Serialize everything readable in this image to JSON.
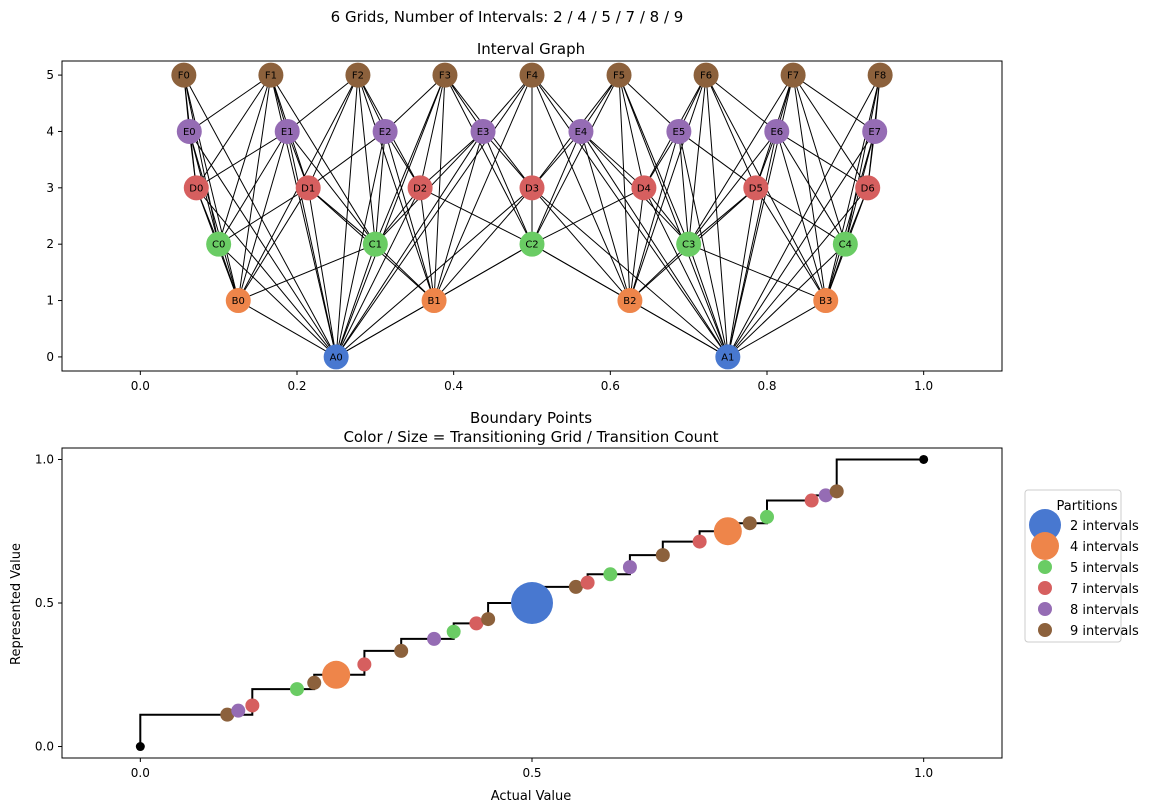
{
  "figure_title": "6 Grids, Number of Intervals: 2 / 4 / 5 / 7 / 8 / 9",
  "colors": {
    "2": "#4878d0",
    "4": "#ee854a",
    "5": "#6acc64",
    "7": "#d65f5f",
    "8": "#956cb4",
    "9": "#8c613c",
    "edge": "#000000",
    "point": "#000000"
  },
  "chart_data": [
    {
      "type": "network",
      "title": "Interval Graph",
      "xlim": [
        -0.1,
        1.1
      ],
      "ylim": [
        -0.25,
        5.25
      ],
      "xticks": [
        0.0,
        0.2,
        0.4,
        0.6,
        0.8,
        1.0
      ],
      "xtick_labels": [
        "0.0",
        "0.2",
        "0.4",
        "0.6",
        "0.8",
        "1.0"
      ],
      "yticks": [
        0,
        1,
        2,
        3,
        4,
        5
      ],
      "ytick_labels": [
        "0",
        "1",
        "2",
        "3",
        "4",
        "5"
      ],
      "levels": [
        {
          "prefix": "A",
          "y": 0,
          "intervals": 2
        },
        {
          "prefix": "B",
          "y": 1,
          "intervals": 4
        },
        {
          "prefix": "C",
          "y": 2,
          "intervals": 5
        },
        {
          "prefix": "D",
          "y": 3,
          "intervals": 7
        },
        {
          "prefix": "E",
          "y": 4,
          "intervals": 8
        },
        {
          "prefix": "F",
          "y": 5,
          "intervals": 9
        }
      ],
      "nodes_note": "node k of a level with n intervals sits at x=(k+0.5)/n, edges connect overlapping intervals between levels"
    },
    {
      "type": "scatter",
      "title": "Boundary Points",
      "subtitle": "Color / Size = Transitioning Grid / Transition Count",
      "xlabel": "Actual Value",
      "ylabel": "Represented Value",
      "xlim": [
        -0.1,
        1.1
      ],
      "ylim": [
        -0.04,
        1.04
      ],
      "xticks": [
        0.0,
        0.5,
        1.0
      ],
      "xtick_labels": [
        "0.0",
        "0.5",
        "1.0"
      ],
      "yticks": [
        0.0,
        0.5,
        1.0
      ],
      "ytick_labels": [
        "0.0",
        "0.5",
        "1.0"
      ],
      "step_line": [
        [
          0,
          0
        ],
        [
          0,
          0.111
        ],
        [
          0.143,
          0.111
        ],
        [
          0.143,
          0.2
        ],
        [
          0.222,
          0.2
        ],
        [
          0.222,
          0.25
        ],
        [
          0.286,
          0.25
        ],
        [
          0.286,
          0.333
        ],
        [
          0.333,
          0.333
        ],
        [
          0.333,
          0.375
        ],
        [
          0.4,
          0.375
        ],
        [
          0.4,
          0.429
        ],
        [
          0.444,
          0.429
        ],
        [
          0.444,
          0.5
        ],
        [
          0.5,
          0.5
        ],
        [
          0.5,
          0.556
        ],
        [
          0.571,
          0.556
        ],
        [
          0.571,
          0.6
        ],
        [
          0.625,
          0.6
        ],
        [
          0.625,
          0.667
        ],
        [
          0.667,
          0.667
        ],
        [
          0.667,
          0.714
        ],
        [
          0.714,
          0.714
        ],
        [
          0.714,
          0.75
        ],
        [
          0.75,
          0.75
        ],
        [
          0.75,
          0.778
        ],
        [
          0.8,
          0.778
        ],
        [
          0.8,
          0.857
        ],
        [
          0.857,
          0.857
        ],
        [
          0.857,
          0.875
        ],
        [
          0.875,
          0.875
        ],
        [
          0.875,
          0.889
        ],
        [
          0.889,
          0.889
        ],
        [
          0.889,
          1.0
        ],
        [
          1.0,
          1.0
        ]
      ],
      "endpoints": [
        [
          0,
          0
        ],
        [
          1.0,
          1.0
        ]
      ],
      "points": [
        {
          "x": 0.111,
          "y": 0.111,
          "grid": "9"
        },
        {
          "x": 0.125,
          "y": 0.125,
          "grid": "8"
        },
        {
          "x": 0.143,
          "y": 0.143,
          "grid": "7"
        },
        {
          "x": 0.2,
          "y": 0.2,
          "grid": "5"
        },
        {
          "x": 0.222,
          "y": 0.222,
          "grid": "9"
        },
        {
          "x": 0.25,
          "y": 0.25,
          "grid": "4"
        },
        {
          "x": 0.286,
          "y": 0.286,
          "grid": "7"
        },
        {
          "x": 0.333,
          "y": 0.333,
          "grid": "9"
        },
        {
          "x": 0.375,
          "y": 0.375,
          "grid": "8"
        },
        {
          "x": 0.4,
          "y": 0.4,
          "grid": "5"
        },
        {
          "x": 0.429,
          "y": 0.429,
          "grid": "7"
        },
        {
          "x": 0.444,
          "y": 0.444,
          "grid": "9"
        },
        {
          "x": 0.5,
          "y": 0.5,
          "grid": "2"
        },
        {
          "x": 0.556,
          "y": 0.556,
          "grid": "9"
        },
        {
          "x": 0.571,
          "y": 0.571,
          "grid": "7"
        },
        {
          "x": 0.6,
          "y": 0.6,
          "grid": "5"
        },
        {
          "x": 0.625,
          "y": 0.625,
          "grid": "8"
        },
        {
          "x": 0.667,
          "y": 0.667,
          "grid": "9"
        },
        {
          "x": 0.714,
          "y": 0.714,
          "grid": "7"
        },
        {
          "x": 0.75,
          "y": 0.75,
          "grid": "4"
        },
        {
          "x": 0.778,
          "y": 0.778,
          "grid": "9"
        },
        {
          "x": 0.8,
          "y": 0.8,
          "grid": "5"
        },
        {
          "x": 0.857,
          "y": 0.857,
          "grid": "7"
        },
        {
          "x": 0.875,
          "y": 0.875,
          "grid": "8"
        },
        {
          "x": 0.889,
          "y": 0.889,
          "grid": "9"
        }
      ],
      "legend": {
        "title": "Partitions",
        "placement": "right, outside",
        "entries": [
          {
            "grid": "2",
            "label": "2 intervals"
          },
          {
            "grid": "4",
            "label": "4 intervals"
          },
          {
            "grid": "5",
            "label": "5 intervals"
          },
          {
            "grid": "7",
            "label": "7 intervals"
          },
          {
            "grid": "8",
            "label": "8 intervals"
          },
          {
            "grid": "9",
            "label": "9 intervals"
          }
        ]
      }
    }
  ]
}
